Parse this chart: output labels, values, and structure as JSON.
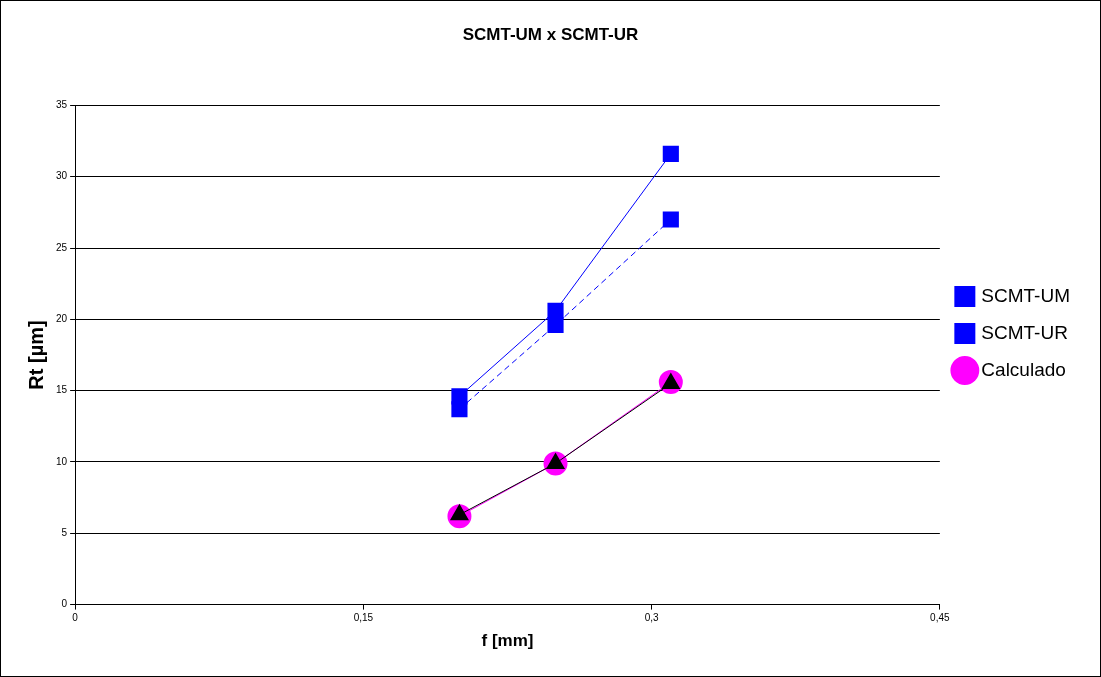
{
  "chart_data": {
    "type": "line",
    "title": "SCMT-UM x SCMT-UR",
    "xlabel": "f [mm]",
    "ylabel": "Rt [µm]",
    "xlim": [
      0,
      0.45
    ],
    "xticks": [
      0,
      {
        "value": 0.15,
        "label": "0,15"
      },
      {
        "value": 0.3,
        "label": "0,3"
      },
      {
        "value": 0.45,
        "label": "0,45"
      }
    ],
    "ylim": [
      0,
      35
    ],
    "yticks": [
      0,
      5,
      10,
      15,
      20,
      25,
      30,
      35
    ],
    "grid": "y",
    "legend": "right",
    "x": [
      0.2,
      0.25,
      0.31
    ],
    "series": [
      {
        "name": "SCMT-UM",
        "color": "#0000ff",
        "values": [
          13.7,
          19.6,
          27.0
        ],
        "marker": "square",
        "line_style": "dashed"
      },
      {
        "name": "SCMT-UR",
        "color": "#0000ff",
        "values": [
          14.6,
          20.6,
          31.6
        ],
        "marker": "square",
        "line_style": "solid"
      },
      {
        "name": "Calculado",
        "color": "#ff00ff",
        "values": [
          6.2,
          9.9,
          15.6
        ],
        "marker": "circle",
        "line_style": "solid"
      },
      {
        "color": "#000000",
        "values": [
          6.3,
          9.9,
          15.5
        ],
        "marker": "triangle",
        "line_style": "solid"
      }
    ]
  }
}
